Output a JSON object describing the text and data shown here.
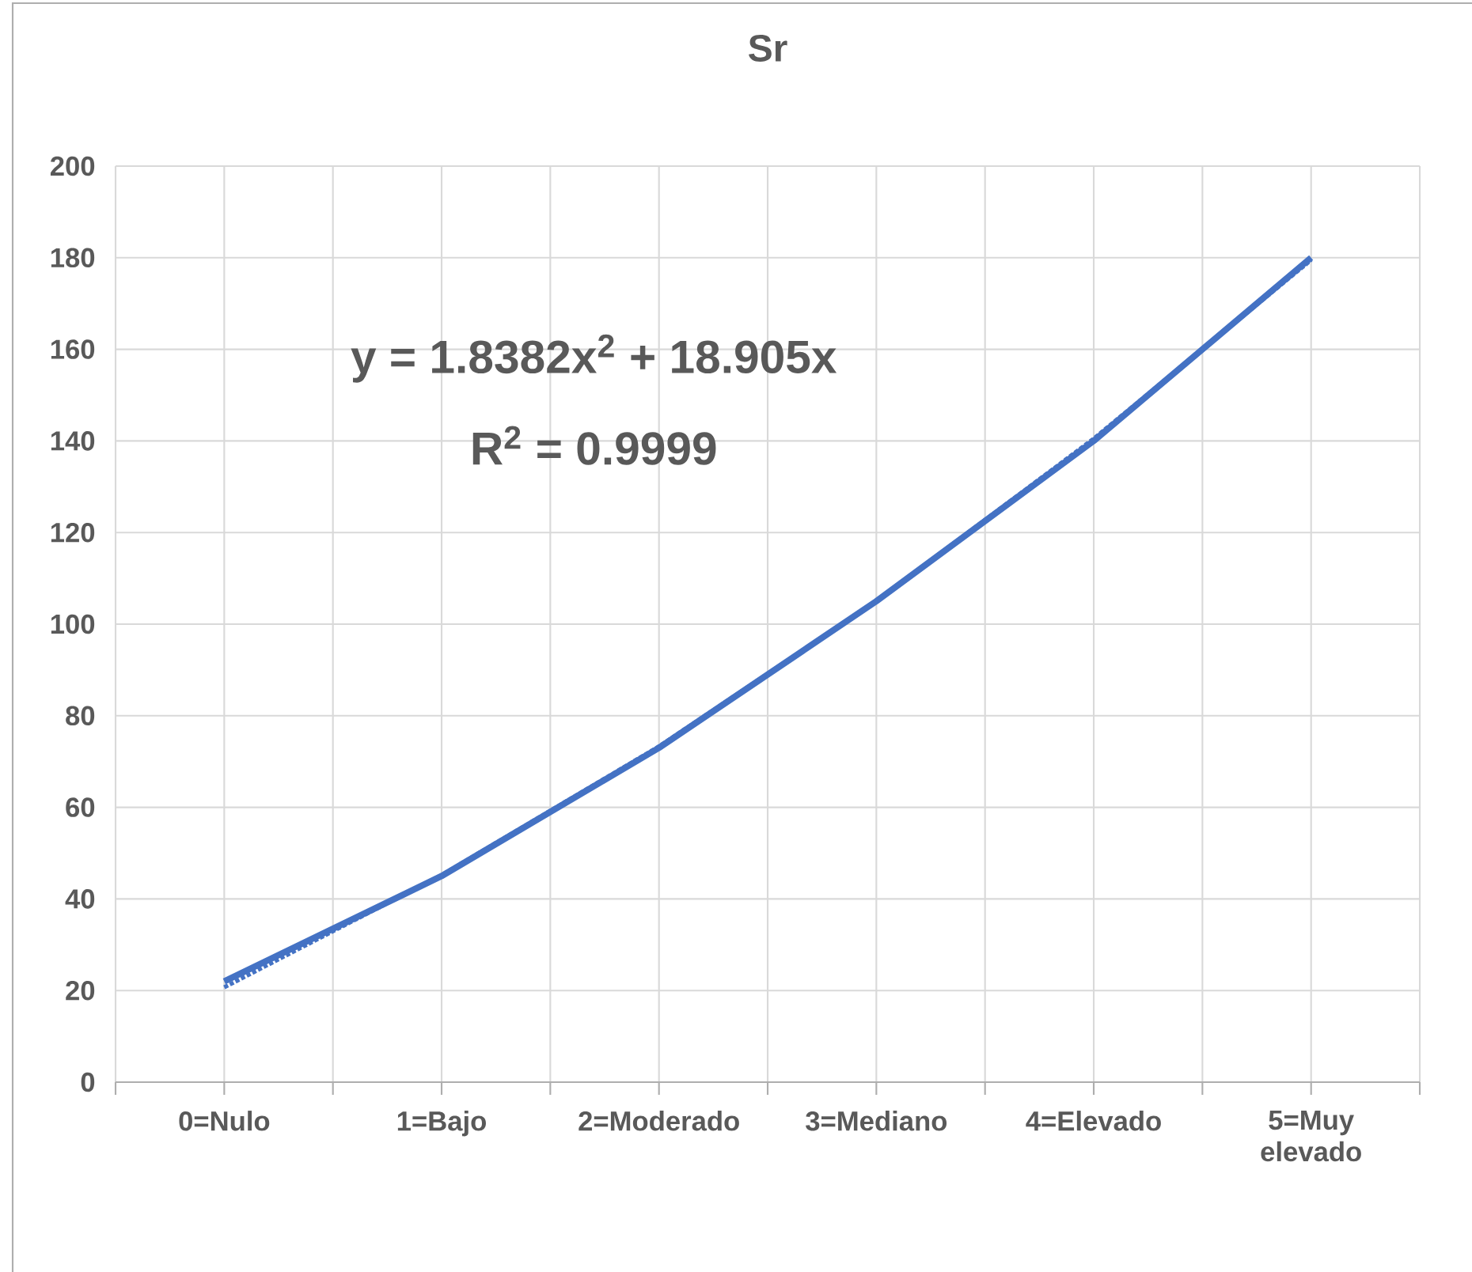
{
  "chart_data": {
    "type": "line",
    "title": "Sr",
    "categories": [
      "0=Nulo",
      "1=Bajo",
      "2=Moderado",
      "3=Mediano",
      "4=Elevado",
      "5=Muy elevado"
    ],
    "series": [
      {
        "color": "#4472c4",
        "values": [
          22,
          45,
          73,
          105,
          140,
          180
        ]
      },
      {
        "color": "#4472c4",
        "line_style": "dotted",
        "values": [
          20.7,
          45.2,
          73.3,
          105.0,
          140.5,
          179.5
        ]
      }
    ],
    "ylim": [
      0,
      200
    ],
    "yticks": [
      0,
      20,
      40,
      60,
      80,
      100,
      120,
      140,
      160,
      180,
      200
    ],
    "grid": true,
    "marker": "none",
    "line_style": "solid",
    "annotations": [
      "y = 1.8382x$^{2}$ + 18.905x",
      "R$^{2}$ = 0.9999"
    ]
  }
}
